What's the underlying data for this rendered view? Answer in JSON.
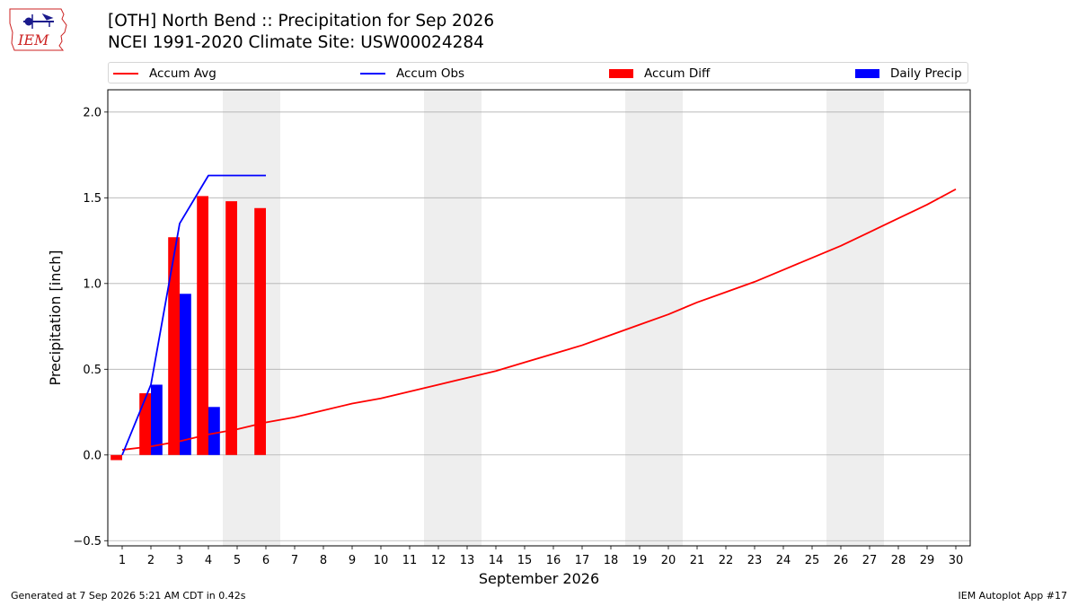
{
  "header": {
    "logo_text": "IEM",
    "title_line1": "[OTH] North Bend :: Precipitation for Sep 2026",
    "title_line2": "NCEI 1991-2020 Climate Site: USW00024284"
  },
  "legend": {
    "items": [
      {
        "label": "Accum Avg",
        "kind": "line",
        "color": "#ff0000"
      },
      {
        "label": "Accum Obs",
        "kind": "line",
        "color": "#0000ff"
      },
      {
        "label": "Accum Diff",
        "kind": "patch",
        "color": "#ff0000"
      },
      {
        "label": "Daily Precip",
        "kind": "patch",
        "color": "#0000ff"
      }
    ],
    "placement": "top"
  },
  "footer": {
    "generated": "Generated at 7 Sep 2026 5:21 AM CDT in 0.42s",
    "app": "IEM Autoplot App #17"
  },
  "chart_data": {
    "type": "bar",
    "xlabel": "September 2026",
    "ylabel": "Precipitation [inch]",
    "xlim": [
      0.5,
      30.5
    ],
    "ylim": [
      -0.53,
      2.13
    ],
    "yticks": [
      -0.5,
      0.0,
      0.5,
      1.0,
      1.5,
      2.0
    ],
    "ytick_labels": [
      "−0.5",
      "0.0",
      "0.5",
      "1.0",
      "1.5",
      "2.0"
    ],
    "xticks": [
      1,
      2,
      3,
      4,
      5,
      6,
      7,
      8,
      9,
      10,
      11,
      12,
      13,
      14,
      15,
      16,
      17,
      18,
      19,
      20,
      21,
      22,
      23,
      24,
      25,
      26,
      27,
      28,
      29,
      30
    ],
    "grid": "horizontal",
    "weekend_shading": [
      [
        4.5,
        6.5
      ],
      [
        11.5,
        13.5
      ],
      [
        18.5,
        20.5
      ],
      [
        25.5,
        27.5
      ]
    ],
    "shading_color": "#eeeeee",
    "series": [
      {
        "name": "Accum Avg",
        "type": "line",
        "color": "#ff0000",
        "x": [
          1,
          2,
          3,
          4,
          5,
          6,
          7,
          8,
          9,
          10,
          11,
          12,
          13,
          14,
          15,
          16,
          17,
          18,
          19,
          20,
          21,
          22,
          23,
          24,
          25,
          26,
          27,
          28,
          29,
          30
        ],
        "values": [
          0.03,
          0.05,
          0.08,
          0.12,
          0.15,
          0.19,
          0.22,
          0.26,
          0.3,
          0.33,
          0.37,
          0.41,
          0.45,
          0.49,
          0.54,
          0.59,
          0.64,
          0.7,
          0.76,
          0.82,
          0.89,
          0.95,
          1.01,
          1.08,
          1.15,
          1.22,
          1.3,
          1.38,
          1.46,
          1.55
        ]
      },
      {
        "name": "Accum Obs",
        "type": "line",
        "color": "#0000ff",
        "x": [
          1,
          2,
          3,
          4,
          5,
          6
        ],
        "values": [
          0.0,
          0.41,
          1.35,
          1.63,
          1.63,
          1.63
        ]
      },
      {
        "name": "Accum Diff",
        "type": "bar",
        "color": "#ff0000",
        "x": [
          1,
          2,
          3,
          4,
          5,
          6
        ],
        "values": [
          -0.03,
          0.36,
          1.27,
          1.51,
          1.48,
          1.44
        ]
      },
      {
        "name": "Daily Precip",
        "type": "bar",
        "color": "#0000ff",
        "x": [
          1,
          2,
          3,
          4,
          5,
          6
        ],
        "values": [
          0.0,
          0.41,
          0.94,
          0.28,
          0.0,
          0.0
        ]
      }
    ]
  }
}
